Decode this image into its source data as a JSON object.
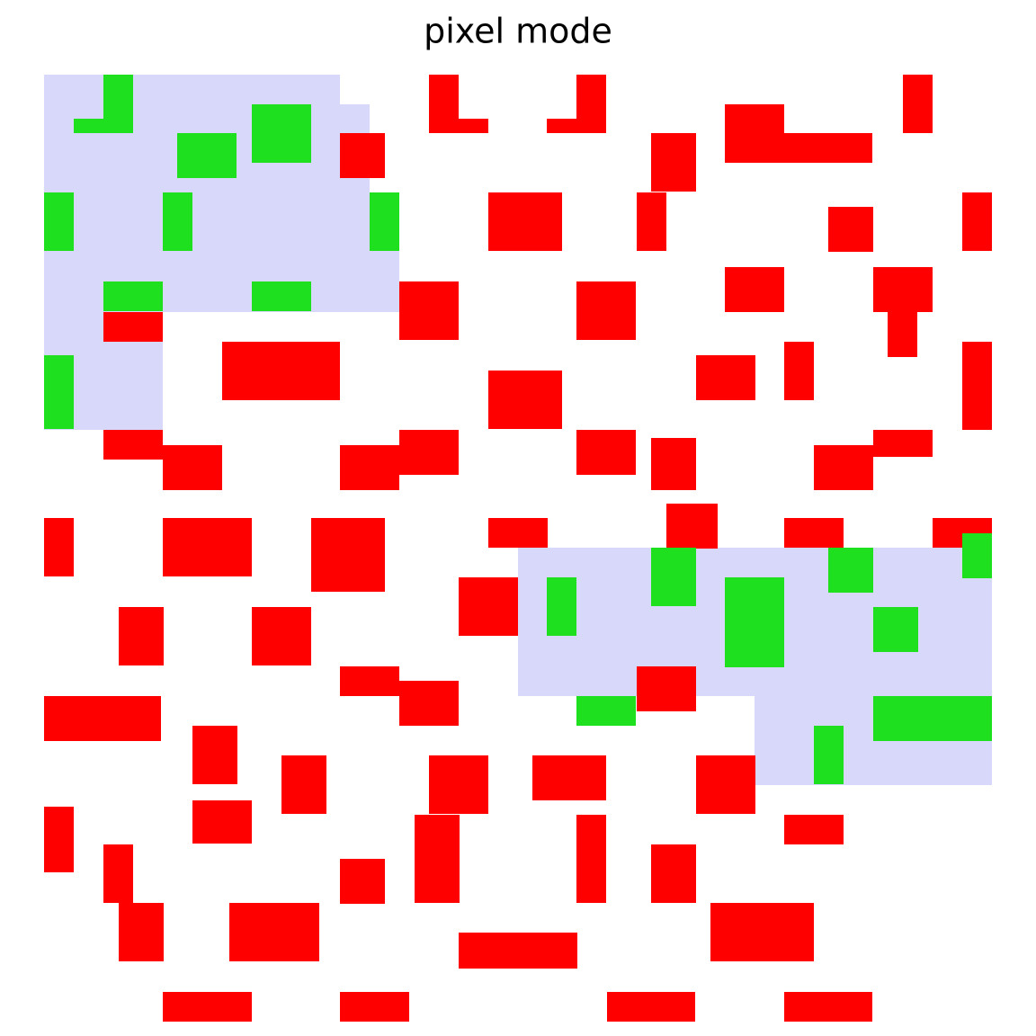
{
  "title": "pixel mode"
}
